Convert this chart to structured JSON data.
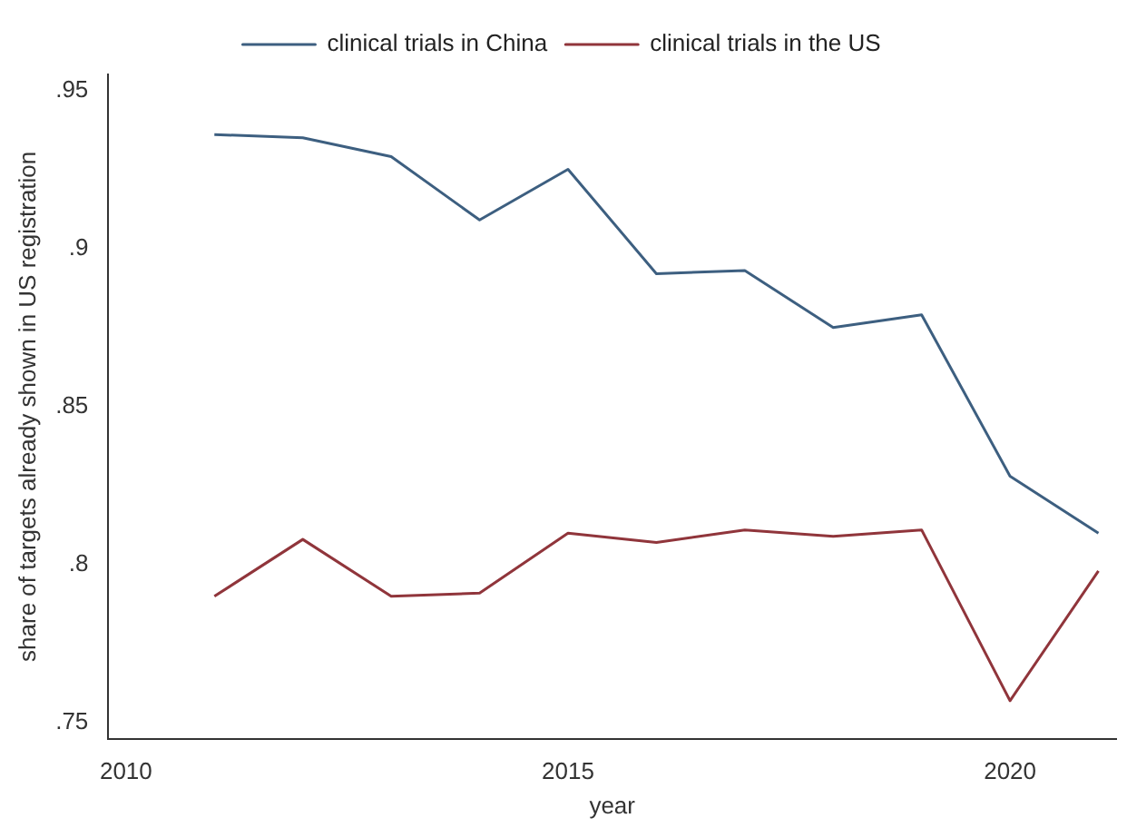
{
  "chart_data": {
    "type": "line",
    "xlabel": "year",
    "ylabel": "share of targets already shown in US registration",
    "x": [
      2011,
      2012,
      2013,
      2014,
      2015,
      2016,
      2017,
      2018,
      2019,
      2020,
      2021
    ],
    "series": [
      {
        "name": "clinical trials in China",
        "color": "#3d5f80",
        "values": [
          0.936,
          0.935,
          0.929,
          0.909,
          0.925,
          0.892,
          0.893,
          0.875,
          0.879,
          0.828,
          0.81
        ]
      },
      {
        "name": "clinical trials in the US",
        "color": "#90353b",
        "values": [
          0.79,
          0.808,
          0.79,
          0.791,
          0.81,
          0.807,
          0.811,
          0.809,
          0.811,
          0.757,
          0.798
        ]
      }
    ],
    "xlim": [
      2009.8,
      2021.2
    ],
    "xticks": [
      2010,
      2015,
      2020
    ],
    "ylim": [
      0.745,
      0.955
    ],
    "yticks": [
      {
        "value": 0.75,
        "label": ".75"
      },
      {
        "value": 0.8,
        "label": ".8"
      },
      {
        "value": 0.85,
        "label": ".85"
      },
      {
        "value": 0.9,
        "label": ".9"
      },
      {
        "value": 0.95,
        "label": ".95"
      }
    ],
    "grid": false,
    "legend": "top",
    "marker": "none",
    "line_style": "solid"
  }
}
